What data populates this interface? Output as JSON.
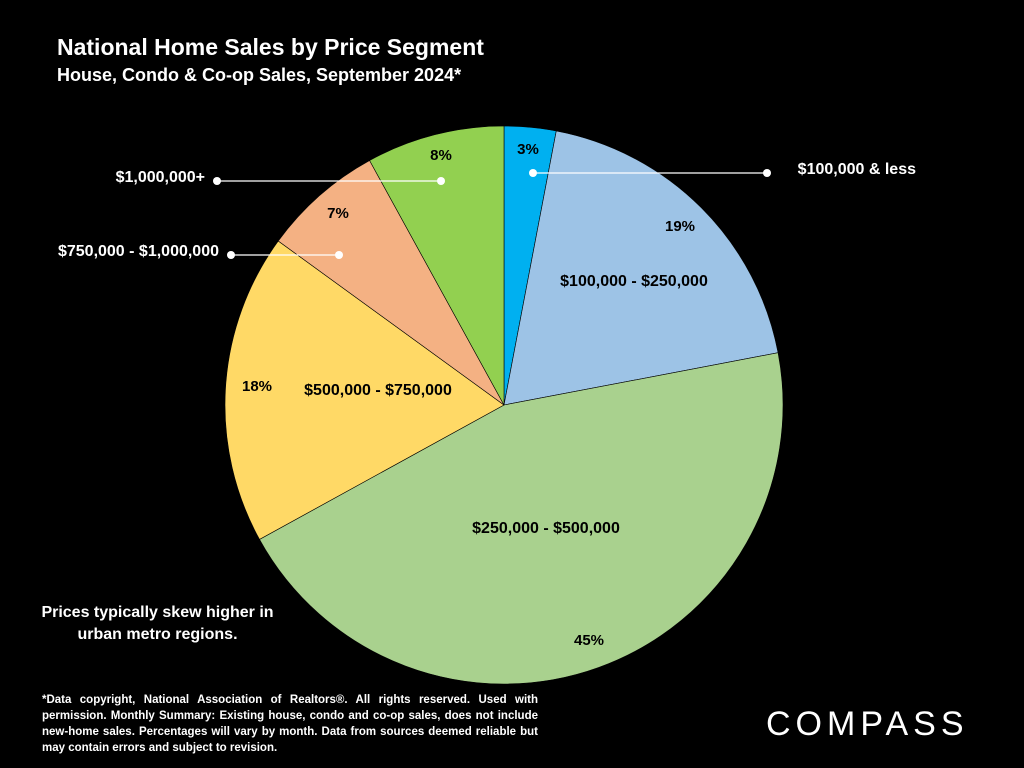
{
  "chart_data": {
    "type": "pie",
    "title": "National Home Sales by Price Segment",
    "subtitle": "House, Condo & Co-op Sales, September 2024*",
    "slices": [
      {
        "label": "$100,000 & less",
        "value": 3,
        "pct_label": "3%",
        "color": "#00B0F0"
      },
      {
        "label": "$100,000 - $250,000",
        "value": 19,
        "pct_label": "19%",
        "color": "#9DC3E6"
      },
      {
        "label": "$250,000 - $500,000",
        "value": 45,
        "pct_label": "45%",
        "color": "#A9D18E"
      },
      {
        "label": "$500,000 - $750,000",
        "value": 18,
        "pct_label": "18%",
        "color": "#FFD966"
      },
      {
        "label": "$750,000 - $1,000,000",
        "value": 7,
        "pct_label": "7%",
        "color": "#F4B183"
      },
      {
        "label": "$1,000,000+",
        "value": 8,
        "pct_label": "8%",
        "color": "#92D050"
      }
    ]
  },
  "note": "Prices typically skew higher in urban metro regions.",
  "footnote": "*Data copyright, National Association of Realtors®. All rights reserved. Used with permission. Monthly Summary:  Existing house, condo and co-op sales, does not include new-home sales. Percentages will vary by month. Data from sources deemed reliable but may contain errors and subject to revision.",
  "logo": "COMPASS"
}
